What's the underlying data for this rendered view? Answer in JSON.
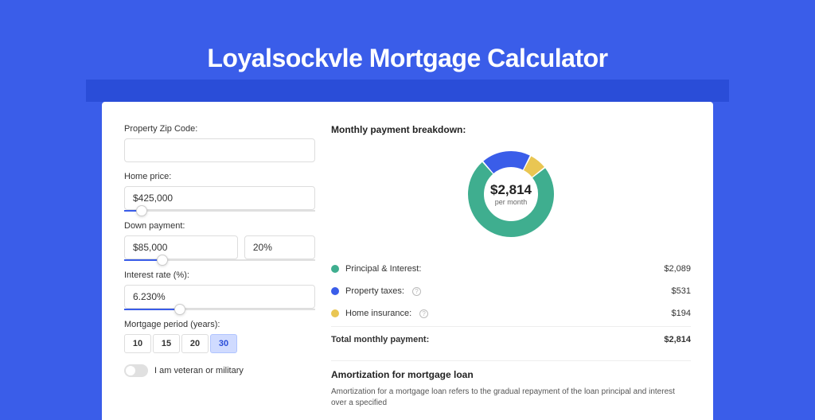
{
  "title": "Loyalsockvle Mortgage Calculator",
  "colors": {
    "page_bg": "#3a5de9",
    "header_bar": "#2a4dd8",
    "card_bg": "#ffffff",
    "principal": "#3fae8f",
    "taxes": "#3a5de9",
    "insurance": "#e9c653",
    "slider_fill": "#3a5de9"
  },
  "inputs": {
    "zip": {
      "label": "Property Zip Code:",
      "value": ""
    },
    "home_price": {
      "label": "Home price:",
      "value": "$425,000",
      "slider_pct": 9
    },
    "down_payment": {
      "label": "Down payment:",
      "value": "$85,000",
      "pct_value": "20%",
      "slider_pct": 20
    },
    "interest": {
      "label": "Interest rate (%):",
      "value": "6.230%",
      "slider_pct": 29
    },
    "period": {
      "label": "Mortgage period (years):",
      "options": [
        "10",
        "15",
        "20",
        "30"
      ],
      "selected": "30"
    },
    "veteran": {
      "label": "I am veteran or military",
      "checked": false
    }
  },
  "breakdown": {
    "title": "Monthly payment breakdown:",
    "donut": {
      "value": "$2,814",
      "sub": "per month",
      "slices": [
        {
          "color": "#3a5de9",
          "pct": 18.9
        },
        {
          "color": "#e9c653",
          "pct": 6.9
        },
        {
          "color": "#3fae8f",
          "pct": 74.2
        }
      ],
      "thickness": 20
    },
    "rows": [
      {
        "dot": "#3fae8f",
        "label": "Principal & Interest:",
        "value": "$2,089",
        "info": false
      },
      {
        "dot": "#3a5de9",
        "label": "Property taxes:",
        "value": "$531",
        "info": true
      },
      {
        "dot": "#e9c653",
        "label": "Home insurance:",
        "value": "$194",
        "info": true
      }
    ],
    "total": {
      "label": "Total monthly payment:",
      "value": "$2,814"
    }
  },
  "amortization": {
    "title": "Amortization for mortgage loan",
    "text": "Amortization for a mortgage loan refers to the gradual repayment of the loan principal and interest over a specified"
  }
}
